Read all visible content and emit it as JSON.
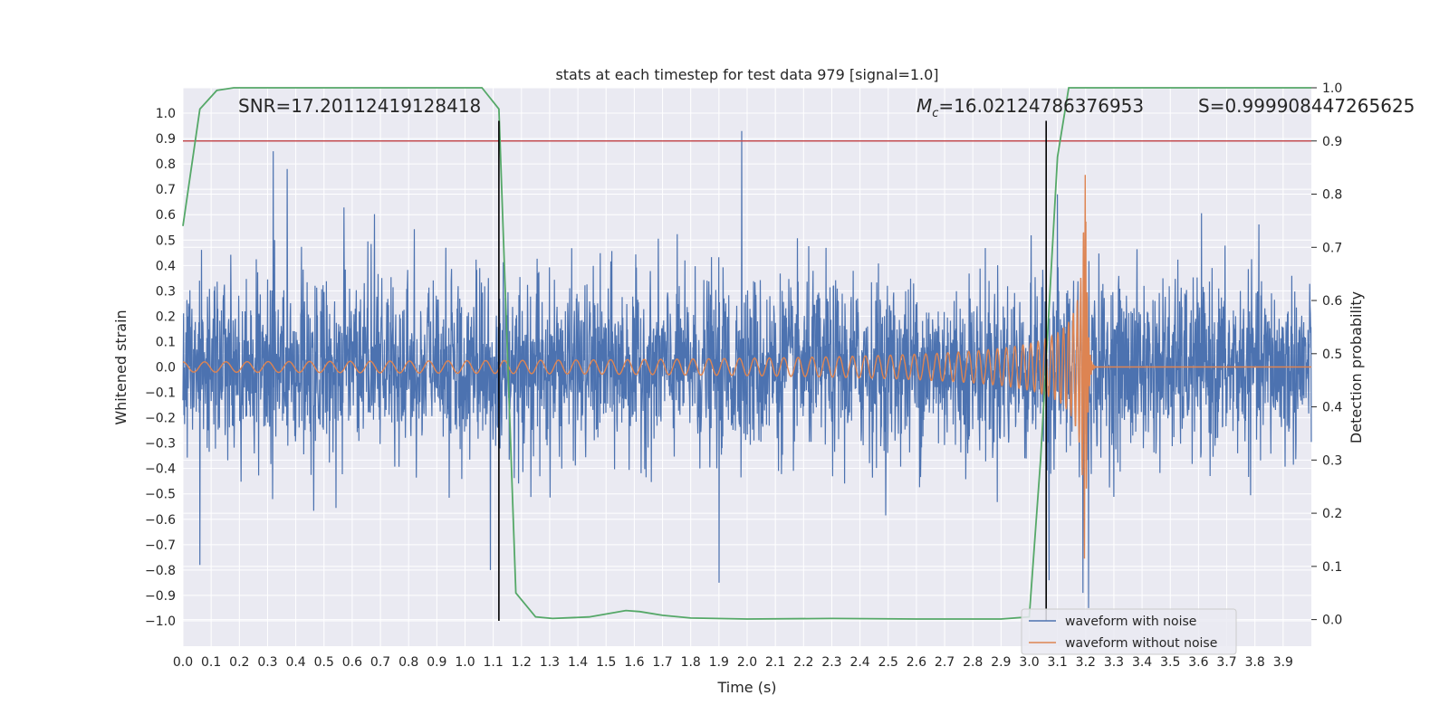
{
  "chart_data": {
    "type": "line",
    "title": "stats at each timestep for test data 979 [signal=1.0]",
    "xlabel": "Time (s)",
    "ylabel": "Whitened strain",
    "y2label": "Detection probability",
    "xlim": [
      0.0,
      4.0
    ],
    "ylim": [
      -1.1,
      1.1
    ],
    "y2lim": [
      -0.05,
      1.0
    ],
    "xticks": [
      "0.0",
      "0.1",
      "0.2",
      "0.3",
      "0.4",
      "0.5",
      "0.6",
      "0.7",
      "0.8",
      "0.9",
      "1.0",
      "1.1",
      "1.2",
      "1.3",
      "1.4",
      "1.5",
      "1.6",
      "1.7",
      "1.8",
      "1.9",
      "2.0",
      "2.1",
      "2.2",
      "2.3",
      "2.4",
      "2.5",
      "2.6",
      "2.7",
      "2.8",
      "2.9",
      "3.0",
      "3.1",
      "3.2",
      "3.3",
      "3.4",
      "3.5",
      "3.6",
      "3.7",
      "3.8",
      "3.9"
    ],
    "yticks": [
      "1.0",
      "0.9",
      "0.8",
      "0.7",
      "0.6",
      "0.5",
      "0.4",
      "0.3",
      "0.2",
      "0.1",
      "0.0",
      "-0.1",
      "-0.2",
      "-0.3",
      "-0.4",
      "-0.5",
      "-0.6",
      "-0.7",
      "-0.8",
      "-0.9",
      "-1.0"
    ],
    "y2ticks": [
      "1.0",
      "0.9",
      "0.8",
      "0.7",
      "0.6",
      "0.5",
      "0.4",
      "0.3",
      "0.2",
      "0.1",
      "0.0"
    ],
    "grid": true,
    "legend_position": "bottom-right",
    "annotations": {
      "snr": "SNR=17.20112419128418",
      "mc_symbol": "M",
      "mc_subscript": "c",
      "mc_value": "=16.02124786376953",
      "s": "S=0.999908447265625"
    },
    "threshold_y": 0.9,
    "vlines_x": [
      1.12,
      3.06
    ],
    "series": [
      {
        "name": "waveform with noise",
        "color": "#4c72b0",
        "envelope_max": 0.5,
        "peaks": [
          {
            "x": 0.32,
            "y": 0.85
          },
          {
            "x": 0.37,
            "y": 0.78
          },
          {
            "x": 1.98,
            "y": 0.93
          },
          {
            "x": 0.06,
            "y": -0.78
          },
          {
            "x": 1.09,
            "y": -0.8
          },
          {
            "x": 1.9,
            "y": -0.85
          },
          {
            "x": 3.21,
            "y": -0.95
          },
          {
            "x": 3.19,
            "y": -0.89
          },
          {
            "x": 3.1,
            "y": 0.68
          },
          {
            "x": 3.07,
            "y": -0.84
          }
        ]
      },
      {
        "name": "waveform without noise",
        "color": "#dd8452",
        "start_amplitude": 0.02,
        "peak_x": 3.2,
        "peak_amplitude": 0.76,
        "peak_min": -0.73,
        "merger_end_x": 3.22
      },
      {
        "name": "",
        "color": "#55a868",
        "axis": "right",
        "x": [
          0.0,
          0.06,
          0.12,
          0.18,
          0.3,
          0.5,
          0.8,
          1.0,
          1.06,
          1.12,
          1.18,
          1.25,
          1.31,
          1.44,
          1.57,
          1.62,
          1.7,
          1.8,
          2.0,
          2.3,
          2.6,
          2.9,
          3.0,
          3.04,
          3.1,
          3.14,
          3.2,
          3.5,
          3.9,
          4.0
        ],
        "y": [
          0.74,
          0.96,
          0.995,
          1.0,
          1.0,
          1.0,
          1.0,
          1.0,
          1.0,
          0.96,
          0.05,
          0.005,
          0.002,
          0.005,
          0.017,
          0.015,
          0.008,
          0.003,
          0.001,
          0.002,
          0.001,
          0.001,
          0.005,
          0.3,
          0.87,
          1.0,
          1.0,
          1.0,
          1.0,
          1.0
        ]
      },
      {
        "name": "",
        "color": "#c44e52",
        "axis": "right",
        "x": [
          0.0,
          4.0
        ],
        "y": [
          0.9,
          0.9
        ]
      }
    ]
  }
}
